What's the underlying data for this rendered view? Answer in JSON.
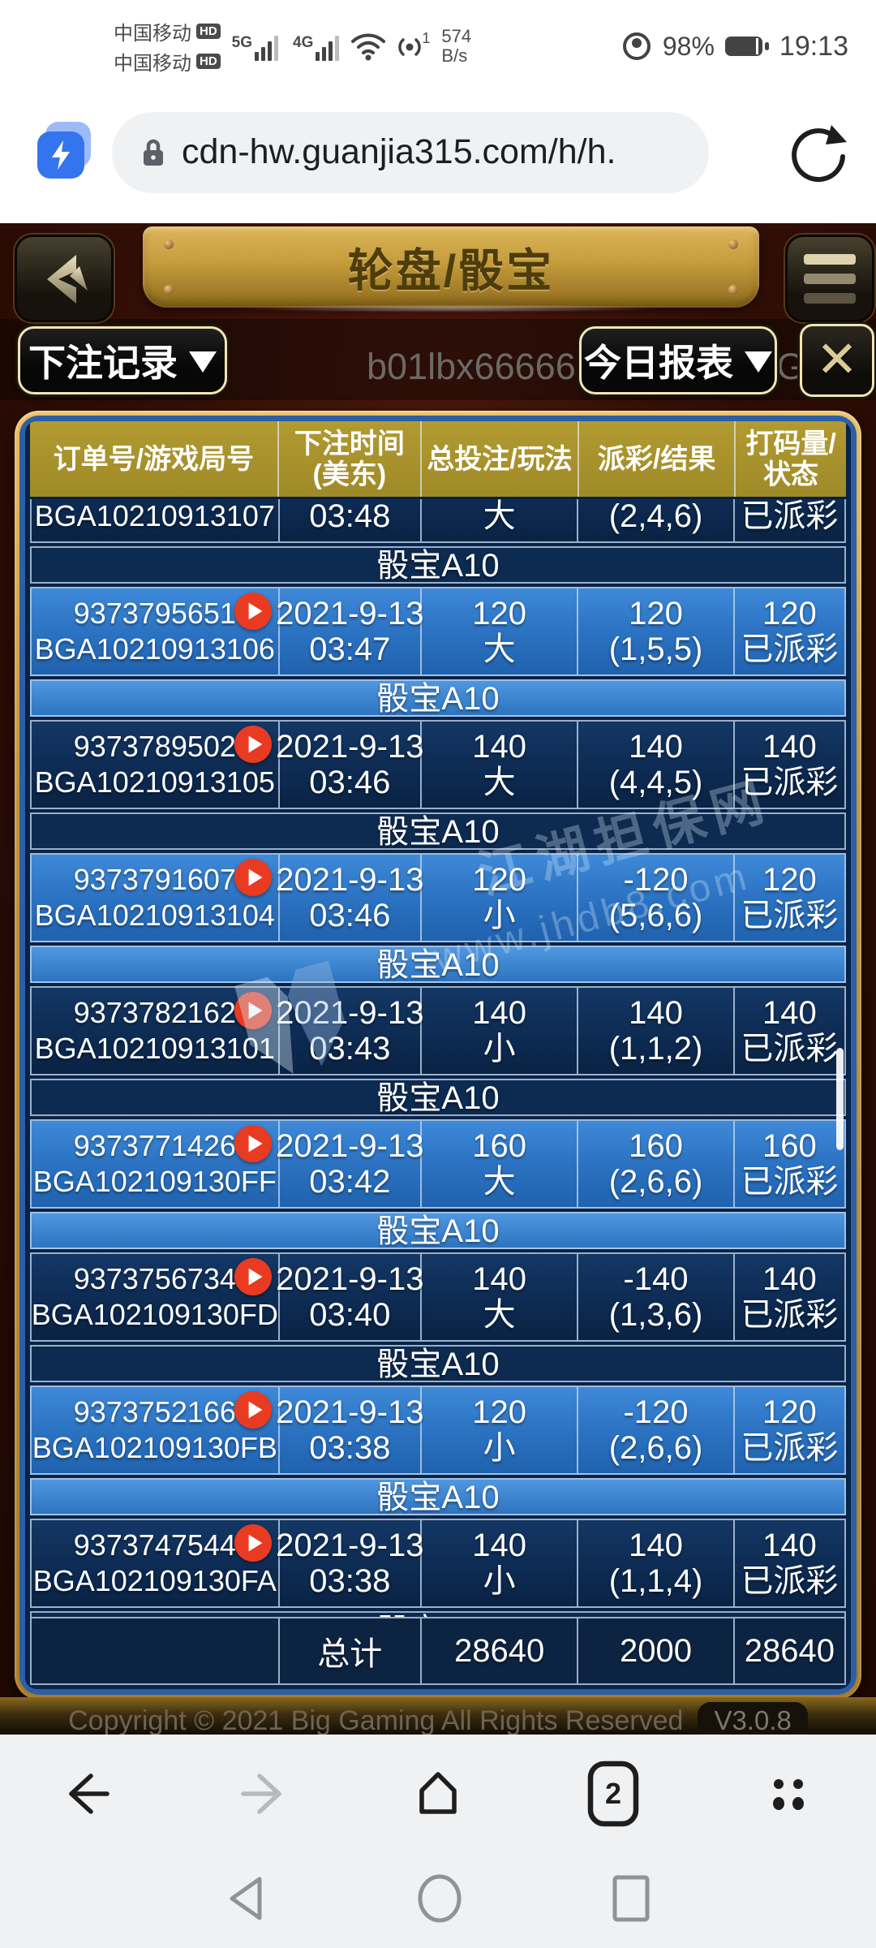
{
  "status_bar": {
    "carrier1": "中国移动",
    "carrier2": "中国移动",
    "hd_badge": "HD",
    "net_5g": "5G",
    "net_4g": "4G",
    "hotspot_count": "1",
    "speed_value": "574",
    "speed_unit": "B/s",
    "battery_percent": "98%",
    "time": "19:13"
  },
  "browser": {
    "url": "cdn-hw.guanjia315.com/h/h.",
    "tab_count": "2"
  },
  "game_header": {
    "title": "轮盘/骰宝"
  },
  "subbar": {
    "bet_records_label": "下注记录",
    "today_report_label": "今日报表",
    "close_label": "✕",
    "marquee_text": "b01lbx666666 欢迎光临BG真人"
  },
  "table": {
    "headers": [
      "订单号/游戏局号",
      "下注时间\n(美东)",
      "总投注/玩法",
      "派彩/结果",
      "打码量/状态"
    ],
    "group_label": "骰宝A10",
    "rows": [
      {
        "order": "",
        "game": "BGA10210913107",
        "date": "",
        "time": "03:48",
        "bet": "",
        "play": "大",
        "payout": "",
        "result": "(2,4,6)",
        "turnover": "",
        "status": "已派彩",
        "tone": "dark"
      },
      {
        "order": "9373795651",
        "game": "BGA10210913106",
        "date": "2021-9-13",
        "time": "03:47",
        "bet": "120",
        "play": "大",
        "payout": "120",
        "result": "(1,5,5)",
        "turnover": "120",
        "status": "已派彩",
        "tone": "bright"
      },
      {
        "order": "9373789502",
        "game": "BGA10210913105",
        "date": "2021-9-13",
        "time": "03:46",
        "bet": "140",
        "play": "大",
        "payout": "140",
        "result": "(4,4,5)",
        "turnover": "140",
        "status": "已派彩",
        "tone": "dark"
      },
      {
        "order": "9373791607",
        "game": "BGA10210913104",
        "date": "2021-9-13",
        "time": "03:46",
        "bet": "120",
        "play": "小",
        "payout": "-120",
        "result": "(5,6,6)",
        "turnover": "120",
        "status": "已派彩",
        "tone": "bright"
      },
      {
        "order": "9373782162",
        "game": "BGA10210913101",
        "date": "2021-9-13",
        "time": "03:43",
        "bet": "140",
        "play": "小",
        "payout": "140",
        "result": "(1,1,2)",
        "turnover": "140",
        "status": "已派彩",
        "tone": "dark"
      },
      {
        "order": "9373771426",
        "game": "BGA102109130FF",
        "date": "2021-9-13",
        "time": "03:42",
        "bet": "160",
        "play": "大",
        "payout": "160",
        "result": "(2,6,6)",
        "turnover": "160",
        "status": "已派彩",
        "tone": "bright"
      },
      {
        "order": "9373756734",
        "game": "BGA102109130FD",
        "date": "2021-9-13",
        "time": "03:40",
        "bet": "140",
        "play": "大",
        "payout": "-140",
        "result": "(1,3,6)",
        "turnover": "140",
        "status": "已派彩",
        "tone": "dark"
      },
      {
        "order": "9373752166",
        "game": "BGA102109130FB",
        "date": "2021-9-13",
        "time": "03:38",
        "bet": "120",
        "play": "小",
        "payout": "-120",
        "result": "(2,6,6)",
        "turnover": "120",
        "status": "已派彩",
        "tone": "bright"
      },
      {
        "order": "9373747544",
        "game": "BGA102109130FA",
        "date": "2021-9-13",
        "time": "03:38",
        "bet": "140",
        "play": "小",
        "payout": "140",
        "result": "(1,1,4)",
        "turnover": "140",
        "status": "已派彩",
        "tone": "dark"
      }
    ],
    "footer": {
      "c1": "",
      "c2": "总计",
      "c3": "28640",
      "c4": "2000",
      "c5": "28640"
    }
  },
  "watermark": {
    "cn_text": "江湖担保网",
    "url_text": "www.jhdb8.com"
  },
  "page_footer": {
    "copyright": "Copyright © 2021 Big Gaming All Rights Reserved",
    "version": "V3.0.8"
  },
  "colors": {
    "header_gold": "#a8922c",
    "row_dark": "#0e2c55",
    "row_bright": "#2f78c8",
    "panel_border_gold": "#c99f43",
    "panel_border_blue": "#2c5fa6",
    "play_red": "#e83b22"
  }
}
